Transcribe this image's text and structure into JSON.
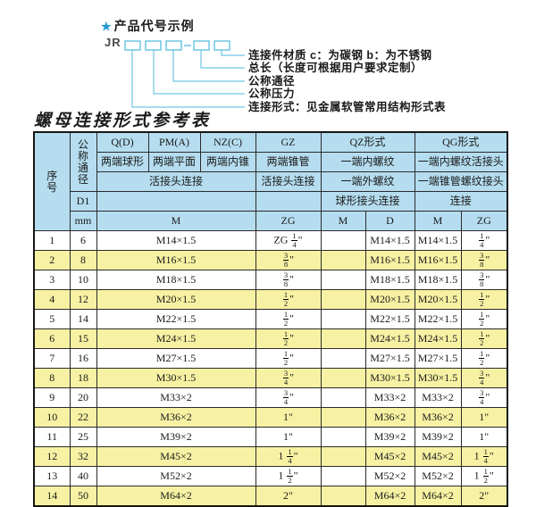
{
  "diagram": {
    "star": "★",
    "title": "产品代号示例",
    "prefix": "JR",
    "line_color": "#6fc6e3",
    "star_color": "#1f99d5",
    "labels": [
      "连接件材质  c：为碳钢  b：为不锈钢",
      "总长（长度可根据用户要求定制）",
      "公称通径",
      "公称压力",
      "连接形式：见金属软管常用结构形式表"
    ]
  },
  "table": {
    "title": "螺母连接形式参考表",
    "colors": {
      "header_bg": "#b5ddef",
      "row_alt_bg": "#f7f1a3",
      "border": "#2b2b2b"
    },
    "header": {
      "col_seq": "序号",
      "col_dn": "公称通径",
      "d1": "D1",
      "mm": "mm",
      "groups": [
        "Q(D)",
        "PM(A)",
        "NZ(C)",
        "GZ",
        "QZ形式",
        "QG形式"
      ],
      "row2": [
        "两端球形",
        "两端平面",
        "两端内锥",
        "两端锥管",
        "一端内螺纹",
        "一端内螺纹活接头"
      ],
      "row3": [
        "活接头连接",
        "活接头连接",
        "一端外螺纹",
        "一端锥管螺纹接头"
      ],
      "row4": [
        "球形接头连接",
        "连接"
      ],
      "row5": [
        "M",
        "ZG",
        "M",
        "D",
        "M",
        "ZG"
      ]
    },
    "rows": [
      {
        "no": "1",
        "dn": "6",
        "m": "M14×1.5",
        "gz": "ZG 1/4\"",
        "qz_m": "",
        "qz_d": "M14×1.5",
        "qg_m": "M14×1.5",
        "qg_zg": "1/4\""
      },
      {
        "no": "2",
        "dn": "8",
        "m": "M16×1.5",
        "gz": "3/8\"",
        "qz_m": "",
        "qz_d": "M16×1.5",
        "qg_m": "M16×1.5",
        "qg_zg": "3/8\""
      },
      {
        "no": "3",
        "dn": "10",
        "m": "M18×1.5",
        "gz": "3/8\"",
        "qz_m": "",
        "qz_d": "M18×1.5",
        "qg_m": "M18×1.5",
        "qg_zg": "3/8\""
      },
      {
        "no": "4",
        "dn": "12",
        "m": "M20×1.5",
        "gz": "1/2\"",
        "qz_m": "",
        "qz_d": "M20×1.5",
        "qg_m": "M20×1.5",
        "qg_zg": "1/2\""
      },
      {
        "no": "5",
        "dn": "14",
        "m": "M22×1.5",
        "gz": "1/2\"",
        "qz_m": "",
        "qz_d": "M22×1.5",
        "qg_m": "M22×1.5",
        "qg_zg": "1/2\""
      },
      {
        "no": "6",
        "dn": "15",
        "m": "M24×1.5",
        "gz": "1/2\"",
        "qz_m": "",
        "qz_d": "M24×1.5",
        "qg_m": "M24×1.5",
        "qg_zg": "1/2\""
      },
      {
        "no": "7",
        "dn": "16",
        "m": "M27×1.5",
        "gz": "1/2\"",
        "qz_m": "",
        "qz_d": "M27×1.5",
        "qg_m": "M27×1.5",
        "qg_zg": "1/2\""
      },
      {
        "no": "8",
        "dn": "18",
        "m": "M30×1.5",
        "gz": "3/4\"",
        "qz_m": "",
        "qz_d": "M30×1.5",
        "qg_m": "M30×1.5",
        "qg_zg": "3/4\""
      },
      {
        "no": "9",
        "dn": "20",
        "m": "M33×2",
        "gz": "3/4\"",
        "qz_m": "",
        "qz_d": "M33×2",
        "qg_m": "M33×2",
        "qg_zg": "3/4\""
      },
      {
        "no": "10",
        "dn": "22",
        "m": "M36×2",
        "gz": "1\"",
        "qz_m": "",
        "qz_d": "M36×2",
        "qg_m": "M36×2",
        "qg_zg": "1\""
      },
      {
        "no": "11",
        "dn": "25",
        "m": "M39×2",
        "gz": "1\"",
        "qz_m": "",
        "qz_d": "M39×2",
        "qg_m": "M39×2",
        "qg_zg": "1\""
      },
      {
        "no": "12",
        "dn": "32",
        "m": "M45×2",
        "gz": "1 1/4\"",
        "qz_m": "",
        "qz_d": "M45×2",
        "qg_m": "M45×2",
        "qg_zg": "1 1/4\""
      },
      {
        "no": "13",
        "dn": "40",
        "m": "M52×2",
        "gz": "1 1/2\"",
        "qz_m": "",
        "qz_d": "M52×2",
        "qg_m": "M52×2",
        "qg_zg": "1 1/2\""
      },
      {
        "no": "14",
        "dn": "50",
        "m": "M64×2",
        "gz": "2\"",
        "qz_m": "",
        "qz_d": "M64×2",
        "qg_m": "M64×2",
        "qg_zg": "2\""
      }
    ]
  }
}
